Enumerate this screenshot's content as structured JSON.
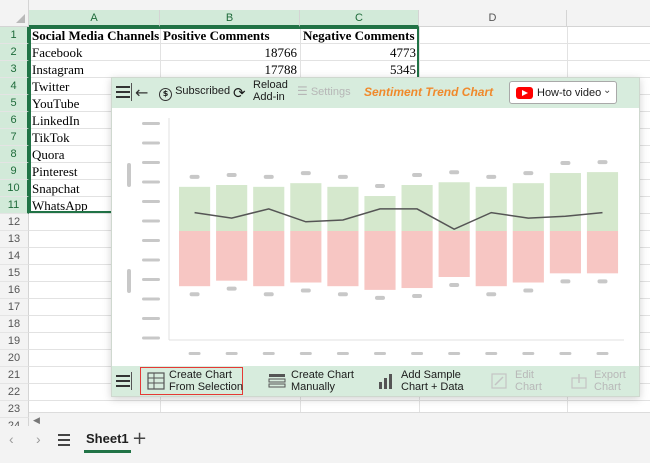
{
  "sheet": {
    "columns": [
      "A",
      "B",
      "C",
      "D"
    ],
    "rows": [
      "1",
      "2",
      "3",
      "4",
      "5",
      "6",
      "7",
      "8",
      "9",
      "10",
      "11",
      "12",
      "13",
      "14",
      "15",
      "16",
      "17",
      "18",
      "19",
      "20",
      "21",
      "22",
      "23",
      "24"
    ],
    "headers": [
      "Social Media Channels",
      "Positive Comments",
      "Negative Comments"
    ],
    "data": [
      {
        "channel": "Facebook",
        "positive": "18766",
        "negative": "4773"
      },
      {
        "channel": "Instagram",
        "positive": "17788",
        "negative": "5345"
      },
      {
        "channel": "Twitter",
        "positive": "",
        "negative": ""
      },
      {
        "channel": "YouTube",
        "positive": "",
        "negative": ""
      },
      {
        "channel": "LinkedIn",
        "positive": "",
        "negative": ""
      },
      {
        "channel": "TikTok",
        "positive": "",
        "negative": ""
      },
      {
        "channel": "Quora",
        "positive": "",
        "negative": ""
      },
      {
        "channel": "Pinterest",
        "positive": "",
        "negative": ""
      },
      {
        "channel": "Snapchat",
        "positive": "",
        "negative": ""
      },
      {
        "channel": "WhatsApp",
        "positive": "",
        "negative": ""
      }
    ],
    "tab_name": "Sheet1",
    "add_sheet": "+"
  },
  "panel": {
    "title": "Sentiment Trend Chart",
    "subscribed": "Subscribed",
    "reload_line1": "Reload",
    "reload_line2": "Add-in",
    "settings": "Settings",
    "howto": "How-to video",
    "bottom": {
      "create_selection_1": "Create Chart",
      "create_selection_2": "From Selection",
      "create_manual_1": "Create Chart",
      "create_manual_2": "Manually",
      "add_sample_1": "Add Sample",
      "add_sample_2": "Chart + Data",
      "edit_1": "Edit",
      "edit_2": "Chart",
      "export_1": "Export",
      "export_2": "Chart"
    }
  },
  "chart_data": {
    "type": "bar",
    "note_source": "sample placeholder preview",
    "positive_heights": [
      0.48,
      0.5,
      0.48,
      0.52,
      0.48,
      0.38,
      0.5,
      0.53,
      0.48,
      0.52,
      0.63,
      0.64
    ],
    "negative_heights": [
      0.6,
      0.54,
      0.6,
      0.56,
      0.6,
      0.64,
      0.62,
      0.5,
      0.6,
      0.56,
      0.46,
      0.46
    ],
    "trend": [
      0.2,
      0.14,
      0.24,
      0.1,
      0.12,
      0.24,
      0.24,
      0.02,
      0.2,
      0.14,
      0.16,
      0.2
    ],
    "colors": {
      "positive": "#d5e8cd",
      "negative": "#f7c6c3",
      "trend": "#555555",
      "placeholder": "#c8c8c8"
    }
  }
}
